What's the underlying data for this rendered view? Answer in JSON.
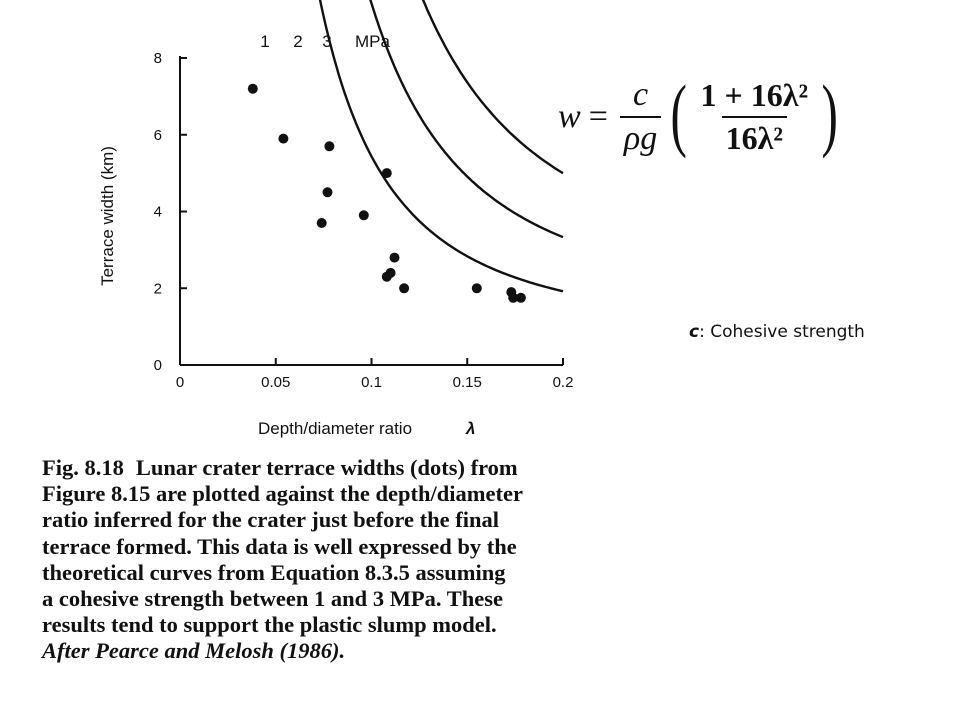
{
  "chart_data": {
    "type": "scatter",
    "xlabel": "Depth/diameter ratio",
    "xlabel_symbol": "λ",
    "ylabel": "Terrace width (km)",
    "xlim": [
      0,
      0.2
    ],
    "ylim": [
      0,
      8
    ],
    "x_ticks": [
      "0",
      "0.05",
      "0.1",
      "0.15",
      "0.2"
    ],
    "x_tick_values": [
      0,
      0.05,
      0.1,
      0.15,
      0.2
    ],
    "y_ticks": [
      "0",
      "2",
      "4",
      "6",
      "8"
    ],
    "y_tick_values": [
      0,
      2,
      4,
      6,
      8
    ],
    "grid": false,
    "points": [
      {
        "x": 0.038,
        "y": 7.2
      },
      {
        "x": 0.054,
        "y": 5.9
      },
      {
        "x": 0.074,
        "y": 3.7
      },
      {
        "x": 0.077,
        "y": 4.5
      },
      {
        "x": 0.078,
        "y": 5.7
      },
      {
        "x": 0.096,
        "y": 3.9
      },
      {
        "x": 0.108,
        "y": 5.0
      },
      {
        "x": 0.108,
        "y": 2.3
      },
      {
        "x": 0.11,
        "y": 2.4
      },
      {
        "x": 0.112,
        "y": 2.8
      },
      {
        "x": 0.117,
        "y": 2.0
      },
      {
        "x": 0.155,
        "y": 2.0
      },
      {
        "x": 0.173,
        "y": 1.9
      },
      {
        "x": 0.174,
        "y": 1.75
      },
      {
        "x": 0.178,
        "y": 1.75
      }
    ],
    "curves": [
      {
        "label": "1",
        "scale": 0.75,
        "x_start": 0.044,
        "x_end": 0.2
      },
      {
        "label": "2",
        "scale": 1.3,
        "x_start": 0.053,
        "x_end": 0.2
      },
      {
        "label": "3",
        "scale": 1.95,
        "x_start": 0.063,
        "x_end": 0.2
      }
    ],
    "curve_unit": "MPa"
  },
  "equation": {
    "lhs": "w",
    "eq": "=",
    "frac1_num": "c",
    "frac1_den": "ρg",
    "paren_open": "(",
    "paren_close": ")",
    "frac2_num": "1 + 16λ²",
    "frac2_den": "16λ²"
  },
  "note": {
    "symbol": "c",
    "text": ": Cohesive strength"
  },
  "caption": {
    "fig_tag": "Fig. 8.18",
    "lines": [
      "Lunar crater terrace widths (dots) from",
      "Figure 8.15 are plotted against the depth/diameter",
      "ratio inferred for the crater just before the final",
      "terrace formed. This data is well expressed by the",
      "theoretical curves from Equation 8.3.5 assuming",
      "a cohesive strength between 1 and 3 MPa. These",
      "results tend to support the plastic slump model."
    ],
    "credit": "After Pearce and Melosh (1986)."
  }
}
